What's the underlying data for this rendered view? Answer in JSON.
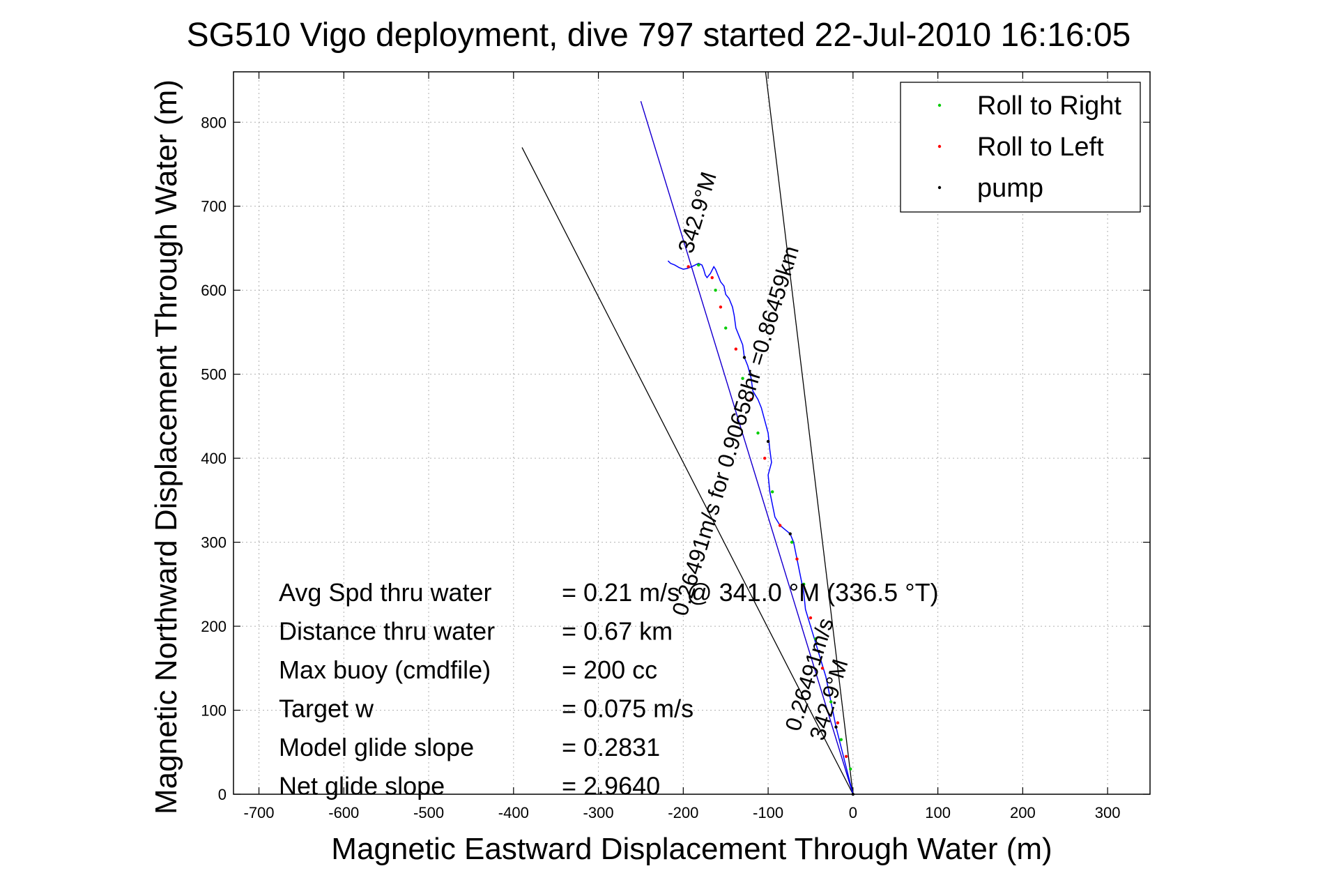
{
  "title": "SG510 Vigo deployment, dive 797 started 22-Jul-2010 16:16:05",
  "chart_data": {
    "type": "line",
    "xlabel": "Magnetic Eastward Displacement Through Water (m)",
    "ylabel": "Magnetic Northward Displacement Through Water (m)",
    "xlim": [
      -730,
      350
    ],
    "ylim": [
      0,
      860
    ],
    "x_ticks": [
      -700,
      -600,
      -500,
      -400,
      -300,
      -200,
      -100,
      0,
      100,
      200,
      300
    ],
    "y_ticks": [
      0,
      100,
      200,
      300,
      400,
      500,
      600,
      700,
      800
    ],
    "x_tick_labels": [
      "-700",
      "-600",
      "-500",
      "-400",
      "-300",
      "-200",
      "-100",
      "0",
      "100",
      "200",
      "300"
    ],
    "y_tick_labels": [
      "0",
      "100",
      "200",
      "300",
      "400",
      "500",
      "600",
      "700",
      "800"
    ],
    "grid": true,
    "legend_position": "top-right",
    "legend": [
      {
        "label": "Roll to Right",
        "color": "#00cc00"
      },
      {
        "label": "Roll to Left",
        "color": "#ff0000"
      },
      {
        "label": "pump",
        "color": "#000000"
      }
    ],
    "series": [
      {
        "color": "#0000ff",
        "x": [
          0,
          -5,
          -10,
          -15,
          -20,
          -24,
          -28,
          -32,
          -38,
          -44,
          -50,
          -56,
          -58,
          -62,
          -66,
          -70,
          -74,
          -80,
          -86,
          -92,
          -95,
          -98,
          -100,
          -96,
          -98,
          -100,
          -104,
          -108,
          -112,
          -118,
          -120,
          -124,
          -128,
          -130,
          -134,
          -138,
          -140,
          -142,
          -146,
          -150,
          -152,
          -156,
          -158,
          -160,
          -162,
          -164,
          -168,
          -172,
          -174,
          -176,
          -178,
          -182,
          -186,
          -190,
          -195,
          -200,
          -205,
          -210,
          -215,
          -218
        ],
        "y": [
          0,
          20,
          40,
          60,
          80,
          100,
          120,
          140,
          160,
          180,
          200,
          220,
          240,
          260,
          280,
          300,
          310,
          315,
          320,
          330,
          345,
          360,
          380,
          395,
          410,
          430,
          445,
          460,
          470,
          480,
          495,
          510,
          520,
          535,
          545,
          555,
          570,
          580,
          590,
          595,
          605,
          610,
          615,
          620,
          625,
          628,
          620,
          615,
          618,
          625,
          630,
          632,
          630,
          628,
          626,
          625,
          627,
          630,
          632,
          635
        ]
      },
      {
        "name": "Roll to Right",
        "color": "#00cc00",
        "x": [
          -3,
          -14,
          -26,
          -44,
          -58,
          -72,
          -95,
          -112,
          -130,
          -150,
          -162,
          -182
        ],
        "y": [
          30,
          65,
          110,
          185,
          250,
          300,
          360,
          430,
          495,
          555,
          600,
          630
        ]
      },
      {
        "name": "Roll to Left",
        "color": "#ff0000",
        "x": [
          -8,
          -18,
          -36,
          -50,
          -66,
          -86,
          -104,
          -120,
          -138,
          -156,
          -166,
          -194
        ],
        "y": [
          45,
          85,
          150,
          210,
          280,
          320,
          400,
          470,
          530,
          580,
          615,
          628
        ]
      },
      {
        "name": "pump",
        "color": "#000000",
        "x": [
          0,
          -20,
          -40,
          -74,
          -100,
          -128
        ],
        "y": [
          0,
          80,
          170,
          310,
          420,
          520
        ]
      }
    ],
    "reference_lines": [
      {
        "color": "#000000",
        "from": [
          0,
          0
        ],
        "to": [
          -390,
          770
        ]
      },
      {
        "color": "#000000",
        "from": [
          0,
          0
        ],
        "to": [
          -103,
          860
        ]
      },
      {
        "color": "#ff00ff",
        "from": [
          0,
          0
        ],
        "to": [
          -250,
          825
        ]
      },
      {
        "color": "#0000cc",
        "from": [
          0,
          0
        ],
        "to": [
          -250,
          825
        ]
      }
    ],
    "line_labels": [
      {
        "text": "342.9°M",
        "at": [
          -175,
          690
        ],
        "angle": -73
      },
      {
        "text": "0.26491m/s for 0.90658hr =0.86459km",
        "at": [
          -130,
          430
        ],
        "angle": -73
      },
      {
        "text": "0.26491m/s",
        "at": [
          -43,
          140
        ],
        "angle": -73
      },
      {
        "text": "342.9°M",
        "at": [
          -20,
          110
        ],
        "angle": -73
      }
    ],
    "annotations": [
      {
        "label": "Avg Spd thru water",
        "value": "=  0.21 m/s @ 341.0 °M (336.5 °T)"
      },
      {
        "label": "Distance thru water",
        "value": "=  0.67 km"
      },
      {
        "label": "Max buoy (cmdfile)",
        "value": "= 200 cc"
      },
      {
        "label": "Target w",
        "value": "= 0.075 m/s"
      },
      {
        "label": "Model glide slope",
        "value": "= 0.2831"
      },
      {
        "label": "Net glide slope",
        "value": "= 2.9640"
      }
    ]
  }
}
